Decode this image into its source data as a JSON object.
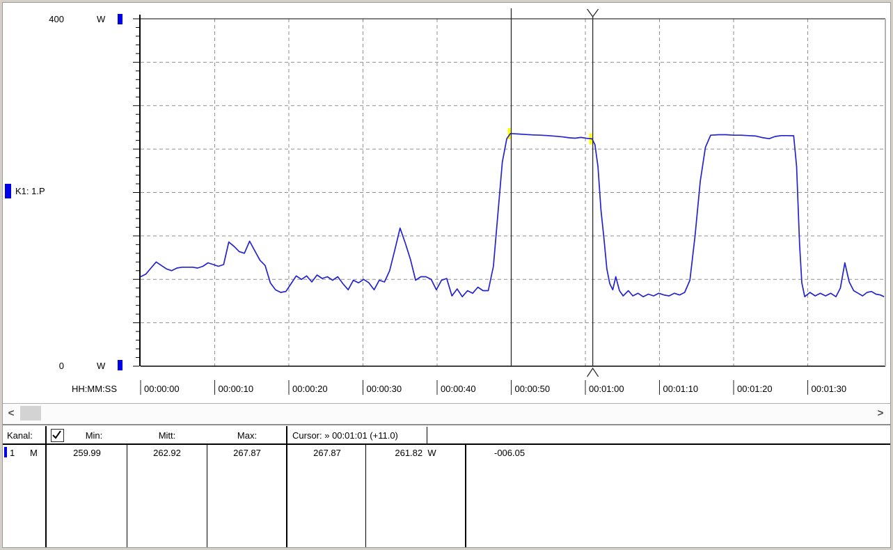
{
  "chart": {
    "y_axis": {
      "max_label": "400",
      "min_label": "0",
      "unit": "W"
    },
    "channel_label": "K1: 1.P",
    "x_axis": {
      "format_label": "HH:MM:SS"
    }
  },
  "chart_data": {
    "type": "line",
    "title": "",
    "xlabel": "HH:MM:SS",
    "ylabel": "W",
    "ylim": [
      0,
      400
    ],
    "xlim_seconds": [
      0,
      100.5
    ],
    "y_grid_step_watts": 50,
    "y_minor_tick_watts": 10,
    "grid": "dashed",
    "x_ticks_seconds": [
      0,
      10,
      20,
      30,
      40,
      50,
      60,
      70,
      80,
      90
    ],
    "x_tick_labels": [
      "00:00:00",
      "00:00:10",
      "00:00:20",
      "00:00:30",
      "00:00:40",
      "00:00:50",
      "00:01:00",
      "00:01:10",
      "00:01:20",
      "00:01:30"
    ],
    "cursors": [
      {
        "time_seconds": 50,
        "time_label": "00:00:50",
        "value_watts": 267.87
      },
      {
        "time_seconds": 61,
        "time_label": "00:01:01",
        "value_watts": 261.82
      }
    ],
    "series": [
      {
        "name": "K1: 1.P",
        "unit": "W",
        "points": [
          [
            0,
            103
          ],
          [
            0.7,
            106
          ],
          [
            1.4,
            113
          ],
          [
            2.1,
            120
          ],
          [
            2.8,
            116
          ],
          [
            3.5,
            112
          ],
          [
            4.2,
            110
          ],
          [
            4.9,
            113
          ],
          [
            5.6,
            114
          ],
          [
            6.3,
            114
          ],
          [
            7,
            114
          ],
          [
            7.7,
            113
          ],
          [
            8.4,
            115
          ],
          [
            9.1,
            119
          ],
          [
            9.8,
            117
          ],
          [
            10.5,
            115
          ],
          [
            11.2,
            117
          ],
          [
            11.9,
            143
          ],
          [
            12.6,
            138
          ],
          [
            13.3,
            132
          ],
          [
            14,
            130
          ],
          [
            14.7,
            144
          ],
          [
            15.4,
            133
          ],
          [
            16.1,
            122
          ],
          [
            16.8,
            116
          ],
          [
            17.5,
            96
          ],
          [
            18.2,
            88
          ],
          [
            18.9,
            85
          ],
          [
            19.6,
            86
          ],
          [
            20.3,
            95
          ],
          [
            21,
            104
          ],
          [
            21.7,
            100
          ],
          [
            22.4,
            104
          ],
          [
            23.1,
            97
          ],
          [
            23.8,
            105
          ],
          [
            24.5,
            101
          ],
          [
            25.2,
            103
          ],
          [
            25.9,
            99
          ],
          [
            26.6,
            103
          ],
          [
            27.3,
            95
          ],
          [
            28,
            88
          ],
          [
            28.7,
            99
          ],
          [
            29.4,
            96
          ],
          [
            30.1,
            100
          ],
          [
            30.8,
            96
          ],
          [
            31.5,
            88
          ],
          [
            32.2,
            99
          ],
          [
            32.9,
            97
          ],
          [
            33.6,
            110
          ],
          [
            34.3,
            134
          ],
          [
            35,
            159
          ],
          [
            35.7,
            142
          ],
          [
            36.4,
            123
          ],
          [
            37.1,
            99
          ],
          [
            37.8,
            103
          ],
          [
            38.5,
            103
          ],
          [
            39.2,
            100
          ],
          [
            39.9,
            88
          ],
          [
            40.6,
            99
          ],
          [
            41.3,
            101
          ],
          [
            42,
            81
          ],
          [
            42.7,
            89
          ],
          [
            43.4,
            80
          ],
          [
            44.1,
            87
          ],
          [
            44.8,
            84
          ],
          [
            45.5,
            91
          ],
          [
            46.2,
            87
          ],
          [
            46.9,
            87
          ],
          [
            47.6,
            115
          ],
          [
            48.2,
            175
          ],
          [
            48.8,
            235
          ],
          [
            49.4,
            262
          ],
          [
            49.9,
            267.9
          ],
          [
            51,
            267.3
          ],
          [
            52,
            266.8
          ],
          [
            53,
            266.3
          ],
          [
            54,
            266
          ],
          [
            55,
            265.5
          ],
          [
            56,
            264.8
          ],
          [
            57,
            264
          ],
          [
            57.8,
            263
          ],
          [
            58.6,
            262.5
          ],
          [
            59.4,
            263.4
          ],
          [
            60.2,
            262.4
          ],
          [
            60.9,
            261.8
          ],
          [
            61.3,
            255
          ],
          [
            61.7,
            230
          ],
          [
            62.1,
            180
          ],
          [
            62.5,
            148
          ],
          [
            62.9,
            112
          ],
          [
            63.3,
            95
          ],
          [
            63.7,
            88
          ],
          [
            64.1,
            103
          ],
          [
            64.6,
            87
          ],
          [
            65.1,
            81
          ],
          [
            65.8,
            87
          ],
          [
            66.4,
            81
          ],
          [
            67.1,
            84
          ],
          [
            67.8,
            80
          ],
          [
            68.5,
            83
          ],
          [
            69.2,
            81
          ],
          [
            69.9,
            84
          ],
          [
            70.6,
            82
          ],
          [
            71.3,
            81
          ],
          [
            72,
            84
          ],
          [
            72.7,
            82
          ],
          [
            73.4,
            85
          ],
          [
            74.1,
            99
          ],
          [
            74.8,
            150
          ],
          [
            75.5,
            213
          ],
          [
            76.2,
            252
          ],
          [
            76.9,
            266
          ],
          [
            78,
            266.5
          ],
          [
            79,
            266.5
          ],
          [
            80,
            266
          ],
          [
            81,
            266
          ],
          [
            82,
            265.5
          ],
          [
            83,
            265
          ],
          [
            84,
            263
          ],
          [
            84.8,
            262
          ],
          [
            85.6,
            264.5
          ],
          [
            86.4,
            265.5
          ],
          [
            87.2,
            265.5
          ],
          [
            88.1,
            265.3
          ],
          [
            88.5,
            230
          ],
          [
            88.9,
            140
          ],
          [
            89.2,
            96
          ],
          [
            89.6,
            80
          ],
          [
            90.3,
            85
          ],
          [
            91,
            81
          ],
          [
            91.7,
            84
          ],
          [
            92.4,
            81
          ],
          [
            93.1,
            84
          ],
          [
            93.8,
            80
          ],
          [
            94.4,
            90
          ],
          [
            95,
            119
          ],
          [
            95.6,
            97
          ],
          [
            96.2,
            87
          ],
          [
            96.8,
            84
          ],
          [
            97.4,
            81
          ],
          [
            98,
            85
          ],
          [
            98.6,
            86
          ],
          [
            99.2,
            83
          ],
          [
            99.8,
            82
          ],
          [
            100.3,
            80
          ]
        ]
      }
    ]
  },
  "scrollbar": {
    "left_arrow": "<",
    "right_arrow": ">"
  },
  "table": {
    "headers": {
      "kanal": "Kanal:",
      "min": "Min:",
      "mitt": "Mitt:",
      "max": "Max:",
      "cursor": "Cursor: » 00:01:01 (+11.0)"
    },
    "checkbox_checked": true,
    "rows": [
      {
        "channel": "1",
        "mode": "M",
        "min": "259.99",
        "mitt": "262.92",
        "max": "267.87",
        "cursor_a": "267.87",
        "cursor_b": "261.82",
        "unit": "W",
        "diff": "-006.05",
        "color": "#0000e6"
      }
    ]
  },
  "colors": {
    "trace": "#2222cf",
    "grid": "#8f8f8f",
    "axis": "#000000",
    "cursor_line": "#2a2a2a",
    "channel_marker": "#0000e6",
    "cursor_highlight": "#ffff00",
    "plot_right_border": "#b4b4b4"
  }
}
